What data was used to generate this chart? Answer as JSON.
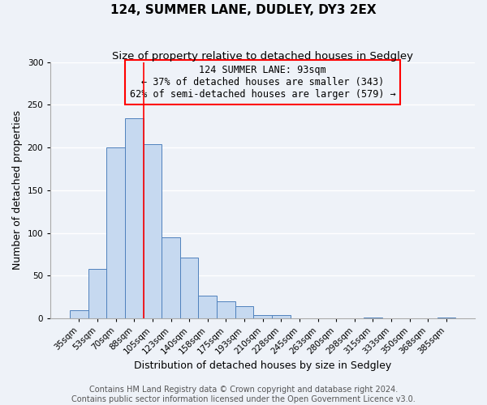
{
  "title": "124, SUMMER LANE, DUDLEY, DY3 2EX",
  "subtitle": "Size of property relative to detached houses in Sedgley",
  "xlabel": "Distribution of detached houses by size in Sedgley",
  "ylabel": "Number of detached properties",
  "bar_labels": [
    "35sqm",
    "53sqm",
    "70sqm",
    "88sqm",
    "105sqm",
    "123sqm",
    "140sqm",
    "158sqm",
    "175sqm",
    "193sqm",
    "210sqm",
    "228sqm",
    "245sqm",
    "263sqm",
    "280sqm",
    "298sqm",
    "315sqm",
    "333sqm",
    "350sqm",
    "368sqm",
    "385sqm"
  ],
  "bar_values": [
    10,
    58,
    200,
    234,
    204,
    95,
    71,
    27,
    20,
    14,
    4,
    4,
    0,
    0,
    0,
    0,
    1,
    0,
    0,
    0,
    1
  ],
  "bar_color": "#c6d9f0",
  "bar_edge_color": "#4f81bd",
  "ylim": [
    0,
    300
  ],
  "yticks": [
    0,
    50,
    100,
    150,
    200,
    250,
    300
  ],
  "red_line_x": 3.5,
  "annotation_title": "124 SUMMER LANE: 93sqm",
  "annotation_line1": "← 37% of detached houses are smaller (343)",
  "annotation_line2": "62% of semi-detached houses are larger (579) →",
  "footer_line1": "Contains HM Land Registry data © Crown copyright and database right 2024.",
  "footer_line2": "Contains public sector information licensed under the Open Government Licence v3.0.",
  "background_color": "#eef2f8",
  "grid_color": "#ffffff",
  "title_fontsize": 11,
  "subtitle_fontsize": 9.5,
  "axis_label_fontsize": 9,
  "tick_fontsize": 7.5,
  "annotation_fontsize": 8.5,
  "footer_fontsize": 7
}
